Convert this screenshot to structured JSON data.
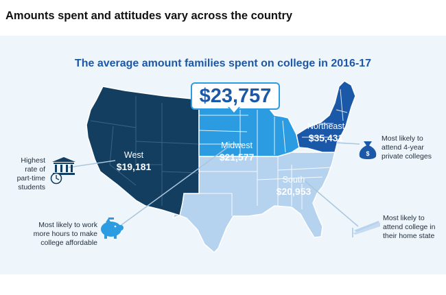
{
  "header": {
    "title": "Amounts spent and attitudes vary across the country"
  },
  "map": {
    "title": "The average amount families spent on college in 2016-17",
    "national_average": "$23,757",
    "regions": {
      "west": {
        "name": "West",
        "amount": "$19,181",
        "color": "#143e60"
      },
      "midwest": {
        "name": "Midwest",
        "amount": "$21,577",
        "color": "#2b9be2"
      },
      "northeast": {
        "name": "Northeast",
        "amount": "$35,431",
        "color": "#1c58a8"
      },
      "south": {
        "name": "South",
        "amount": "$20,953",
        "color": "#b5d2ef"
      }
    }
  },
  "callouts": {
    "west": {
      "line1": "Highest",
      "line2": "rate of",
      "line3": "part-time",
      "line4": "students",
      "icon": "bank-clock-icon"
    },
    "midwest": {
      "line1": "Most likely to work",
      "line2": "more hours to make",
      "line3": "college affordable",
      "icon": "piggy-bank-icon"
    },
    "northeast": {
      "line1": "Most likely to",
      "line2": "attend 4-year",
      "line3": "private colleges",
      "icon": "money-bag-icon"
    },
    "south": {
      "line1": "Most likely to",
      "line2": "attend college in",
      "line3": "their home state",
      "icon": "home-pennant-icon"
    }
  }
}
